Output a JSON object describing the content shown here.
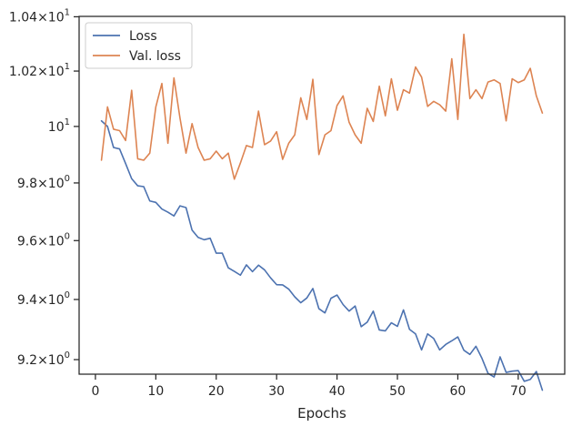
{
  "chart_data": {
    "type": "line",
    "title": "",
    "xlabel": "Epochs",
    "ylabel": "",
    "xlim": [
      -2.7,
      77.7
    ],
    "ylim": [
      9.1522,
      10.4014
    ],
    "ylog": true,
    "grid": false,
    "legend_position": "top-left",
    "x_ticks": [
      0,
      10,
      20,
      30,
      40,
      50,
      60,
      70
    ],
    "x_tick_labels": [
      "0",
      "10",
      "20",
      "30",
      "40",
      "50",
      "60",
      "70"
    ],
    "y_ticks": [
      {
        "value": 9.2,
        "base": "9.2",
        "exp": "0"
      },
      {
        "value": 9.4,
        "base": "9.4",
        "exp": "0"
      },
      {
        "value": 9.6,
        "base": "9.6",
        "exp": "0"
      },
      {
        "value": 9.8,
        "base": "9.8",
        "exp": "0"
      },
      {
        "value": 10.0,
        "base": "10",
        "exp": "1"
      },
      {
        "value": 10.2,
        "base": "1.02",
        "exp": "1"
      },
      {
        "value": 10.4,
        "base": "1.04",
        "exp": "1"
      }
    ],
    "x": [
      1,
      2,
      3,
      4,
      5,
      6,
      7,
      8,
      9,
      10,
      11,
      12,
      13,
      14,
      15,
      16,
      17,
      18,
      19,
      20,
      21,
      22,
      23,
      24,
      25,
      26,
      27,
      28,
      29,
      30,
      31,
      32,
      33,
      34,
      35,
      36,
      37,
      38,
      39,
      40,
      41,
      42,
      43,
      44,
      45,
      46,
      47,
      48,
      49,
      50,
      51,
      52,
      53,
      54,
      55,
      56,
      57,
      58,
      59,
      60,
      61,
      62,
      63,
      64,
      65,
      66,
      67,
      68,
      69,
      70,
      71,
      72,
      73,
      74
    ],
    "series": [
      {
        "name": "Loss",
        "color": "#4c72b0",
        "values": [
          10.02,
          10.0,
          9.925,
          9.92,
          9.868,
          9.815,
          9.79,
          9.787,
          9.737,
          9.732,
          9.709,
          9.698,
          9.685,
          9.72,
          9.714,
          9.636,
          9.611,
          9.603,
          9.608,
          9.557,
          9.557,
          9.507,
          9.495,
          9.482,
          9.517,
          9.494,
          9.516,
          9.5,
          9.473,
          9.45,
          9.449,
          9.435,
          9.409,
          9.389,
          9.405,
          9.437,
          9.369,
          9.355,
          9.404,
          9.415,
          9.383,
          9.361,
          9.378,
          9.309,
          9.324,
          9.361,
          9.298,
          9.295,
          9.322,
          9.31,
          9.365,
          9.3,
          9.285,
          9.232,
          9.285,
          9.27,
          9.232,
          9.25,
          9.262,
          9.275,
          9.231,
          9.217,
          9.244,
          9.204,
          9.155,
          9.143,
          9.209,
          9.158,
          9.162,
          9.164,
          9.129,
          9.135,
          9.161,
          9.1
        ]
      },
      {
        "name": "Val. loss",
        "color": "#dd8452",
        "values": [
          9.88,
          10.07,
          9.99,
          9.985,
          9.95,
          10.13,
          9.885,
          9.88,
          9.905,
          10.07,
          10.155,
          9.94,
          10.175,
          10.03,
          9.905,
          10.01,
          9.925,
          9.88,
          9.885,
          9.912,
          9.885,
          9.905,
          9.813,
          9.87,
          9.932,
          9.925,
          10.055,
          9.935,
          9.948,
          9.981,
          9.883,
          9.94,
          9.97,
          10.103,
          10.025,
          10.17,
          9.9,
          9.97,
          9.985,
          10.075,
          10.11,
          10.015,
          9.97,
          9.94,
          10.065,
          10.018,
          10.145,
          10.038,
          10.172,
          10.058,
          10.132,
          10.12,
          10.215,
          10.178,
          10.072,
          10.09,
          10.078,
          10.055,
          10.245,
          10.025,
          10.335,
          10.1,
          10.132,
          10.1,
          10.16,
          10.168,
          10.155,
          10.02,
          10.172,
          10.158,
          10.168,
          10.21,
          10.11,
          10.048
        ]
      }
    ]
  }
}
